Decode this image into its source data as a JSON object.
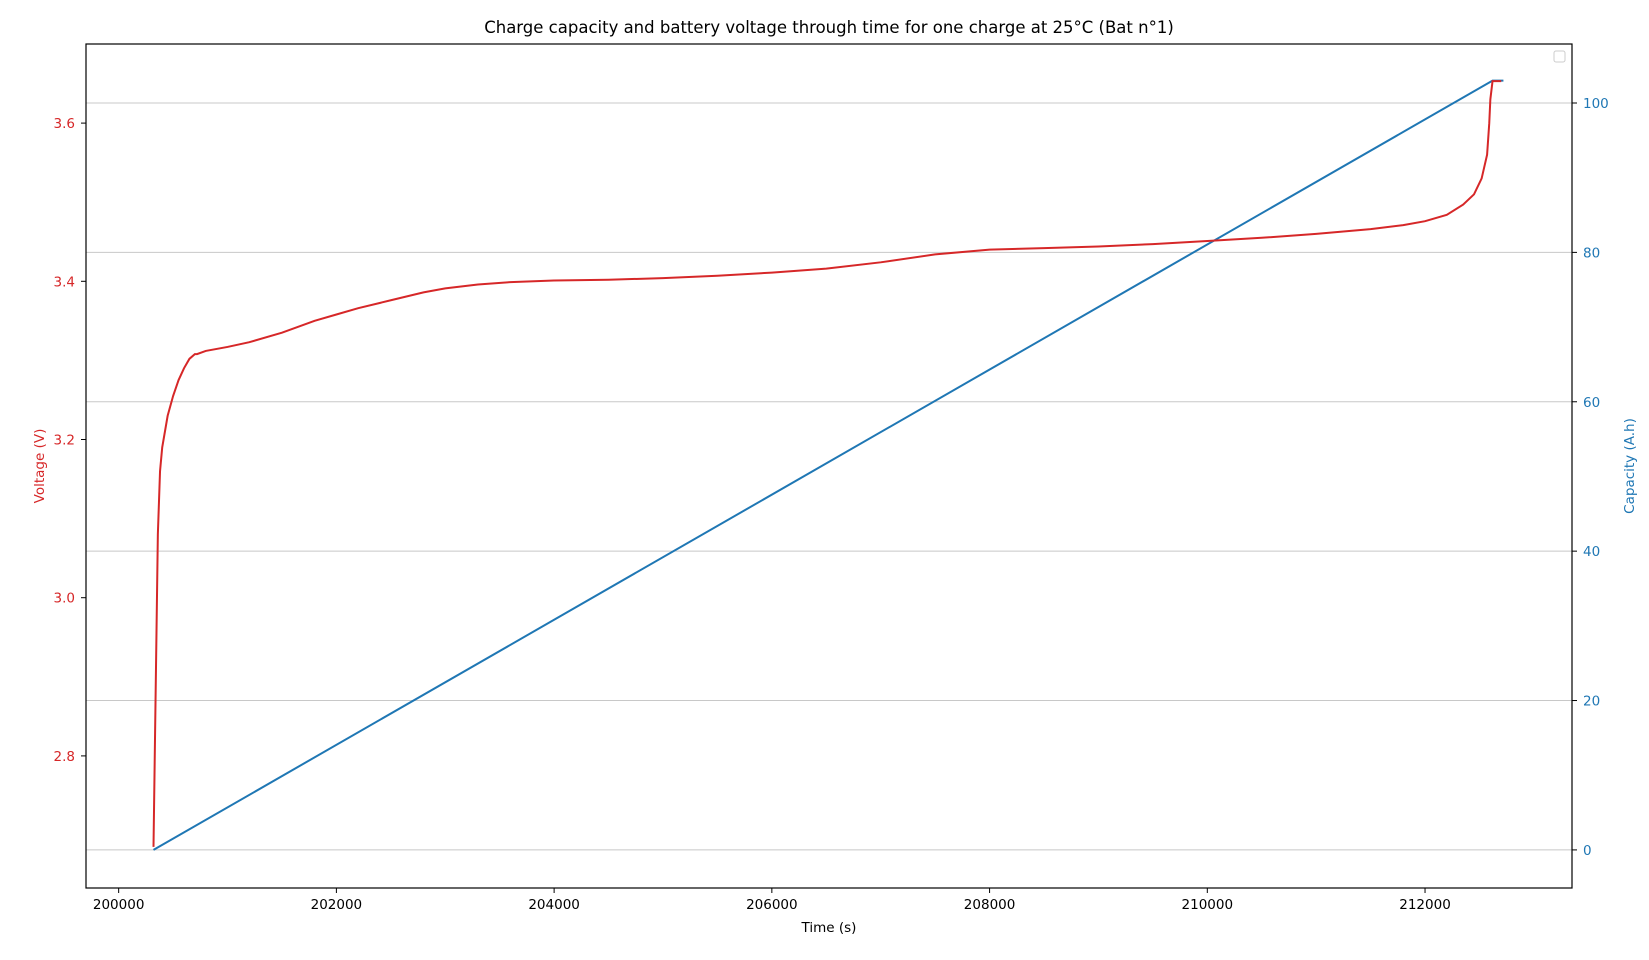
{
  "colors": {
    "voltage": "#d62728",
    "capacity": "#1f77b4",
    "grid": "#c8c8c8",
    "axis": "#000000"
  },
  "chart_data": {
    "type": "line",
    "title": "Charge capacity and battery voltage through time for one charge at 25°C (Bat n°1)",
    "xlabel": "Time (s)",
    "ylabel_left": "Voltage (V)",
    "ylabel_right": "Capacity (A.h)",
    "xlim": [
      199700,
      213350
    ],
    "ylim_left": [
      2.633,
      3.7
    ],
    "ylim_right": [
      -5.1,
      107.9
    ],
    "xticks": [
      200000,
      202000,
      204000,
      206000,
      208000,
      210000,
      212000
    ],
    "yticks_left": [
      2.8,
      3.0,
      3.2,
      3.4,
      3.6
    ],
    "yticks_right": [
      0,
      20,
      40,
      60,
      80,
      100
    ],
    "grid": "horizontal lines at right-axis ticks",
    "legend": "top-right (empty)",
    "series": [
      {
        "axis": "left",
        "color": "#d62728",
        "x": [
          200320,
          200360,
          200380,
          200400,
          200450,
          200500,
          200550,
          200600,
          200650,
          200700,
          200720,
          200800,
          201000,
          201200,
          201500,
          201800,
          202000,
          202200,
          202500,
          202800,
          203000,
          203300,
          203600,
          204000,
          204500,
          205000,
          205500,
          206000,
          206500,
          207000,
          207500,
          208000,
          208500,
          209000,
          209500,
          210000,
          210500,
          211000,
          211500,
          211800,
          212000,
          212200,
          212350,
          212450,
          212520,
          212570,
          212590,
          212600,
          212620,
          212700
        ],
        "values": [
          2.685,
          3.08,
          3.16,
          3.19,
          3.23,
          3.255,
          3.275,
          3.29,
          3.302,
          3.308,
          3.308,
          3.312,
          3.317,
          3.323,
          3.335,
          3.35,
          3.358,
          3.366,
          3.376,
          3.386,
          3.391,
          3.396,
          3.399,
          3.401,
          3.402,
          3.404,
          3.407,
          3.411,
          3.416,
          3.424,
          3.434,
          3.44,
          3.442,
          3.444,
          3.447,
          3.451,
          3.455,
          3.46,
          3.466,
          3.471,
          3.476,
          3.484,
          3.497,
          3.51,
          3.53,
          3.56,
          3.6,
          3.63,
          3.653,
          3.653
        ]
      },
      {
        "axis": "right",
        "color": "#1f77b4",
        "x": [
          200320,
          212620,
          212720
        ],
        "values": [
          0,
          103,
          103
        ]
      }
    ]
  }
}
